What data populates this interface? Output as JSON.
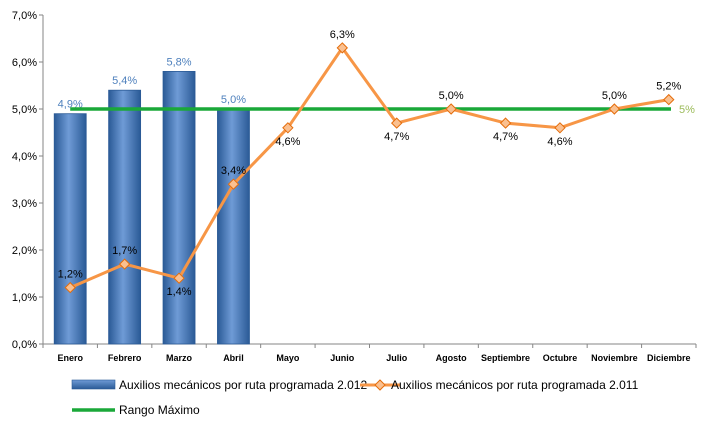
{
  "chart_data": {
    "type": "bar",
    "categories": [
      "Enero",
      "Febrero",
      "Marzo",
      "Abril",
      "Mayo",
      "Junio",
      "Julio",
      "Agosto",
      "Septiembre",
      "Octubre",
      "Noviembre",
      "Diciembre"
    ],
    "ylim": [
      0,
      7
    ],
    "ytick_labels": [
      "0,0%",
      "1,0%",
      "2,0%",
      "3,0%",
      "4,0%",
      "5,0%",
      "6,0%",
      "7,0%"
    ],
    "grid": false,
    "legend_position": "bottom",
    "series": [
      {
        "name": "Auxilios mecánicos por ruta programada 2.012",
        "type": "bar",
        "color": "#4f81bd",
        "values": [
          4.9,
          5.4,
          5.8,
          5.0,
          null,
          null,
          null,
          null,
          null,
          null,
          null,
          null
        ],
        "labels": [
          "4,9%",
          "5,4%",
          "5,8%",
          "5,0%"
        ]
      },
      {
        "name": "Auxilios mecánicos por ruta programada 2.011",
        "type": "line",
        "color": "#f79646",
        "values": [
          1.2,
          1.7,
          1.4,
          3.4,
          4.6,
          6.3,
          4.7,
          5.0,
          4.7,
          4.6,
          5.0,
          5.2
        ],
        "labels": [
          "1,2%",
          "1,7%",
          "1,4%",
          "3,4%",
          "4,6%",
          "6,3%",
          "4,7%",
          "5,0%",
          "4,7%",
          "4,6%",
          "5,0%",
          "5,2%"
        ]
      },
      {
        "name": "Rango Máximo",
        "type": "line",
        "color": "#1aa839",
        "value": 5.0,
        "label": "5%"
      }
    ]
  }
}
